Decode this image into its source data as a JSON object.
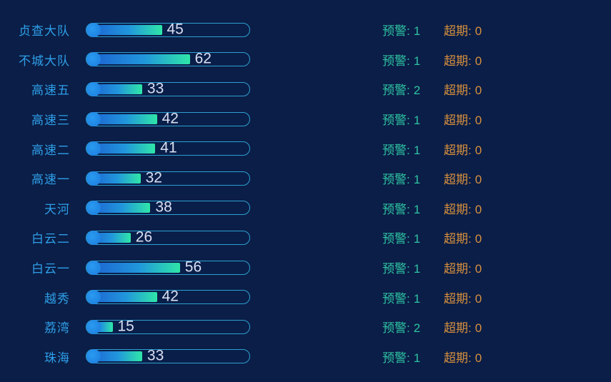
{
  "page": {
    "background": "#0a1e47"
  },
  "colors": {
    "label_blue": "#2f9fe8",
    "bar_border": "#2e9fd0",
    "bar_fill_start": "#1c5fd0",
    "bar_fill_end": "#2fe6a8",
    "bar_cap": "#1f8ce4",
    "value_text": "#dcdff2",
    "warning_teal": "#2fc3a2",
    "overdue_orange": "#d8903e"
  },
  "labels": {
    "warning": "预警:",
    "overdue": "超期:"
  },
  "chart_data": {
    "type": "bar",
    "orientation": "horizontal",
    "title": "",
    "xlabel": "",
    "ylabel": "",
    "xlim": [
      0,
      100
    ],
    "grid": false,
    "legend": false,
    "categories": [
      "贞查大队",
      "不城大队",
      "高速五",
      "高速三",
      "高速二",
      "高速一",
      "天河",
      "白云二",
      "白云一",
      "越秀",
      "荔湾",
      "珠海"
    ],
    "values": [
      45,
      62,
      33,
      42,
      41,
      32,
      38,
      26,
      56,
      42,
      15,
      33
    ],
    "warning_counts": [
      1,
      1,
      2,
      1,
      1,
      1,
      1,
      1,
      1,
      1,
      2,
      1
    ],
    "overdue_counts": [
      0,
      0,
      0,
      0,
      0,
      0,
      0,
      0,
      0,
      0,
      0,
      0
    ]
  }
}
